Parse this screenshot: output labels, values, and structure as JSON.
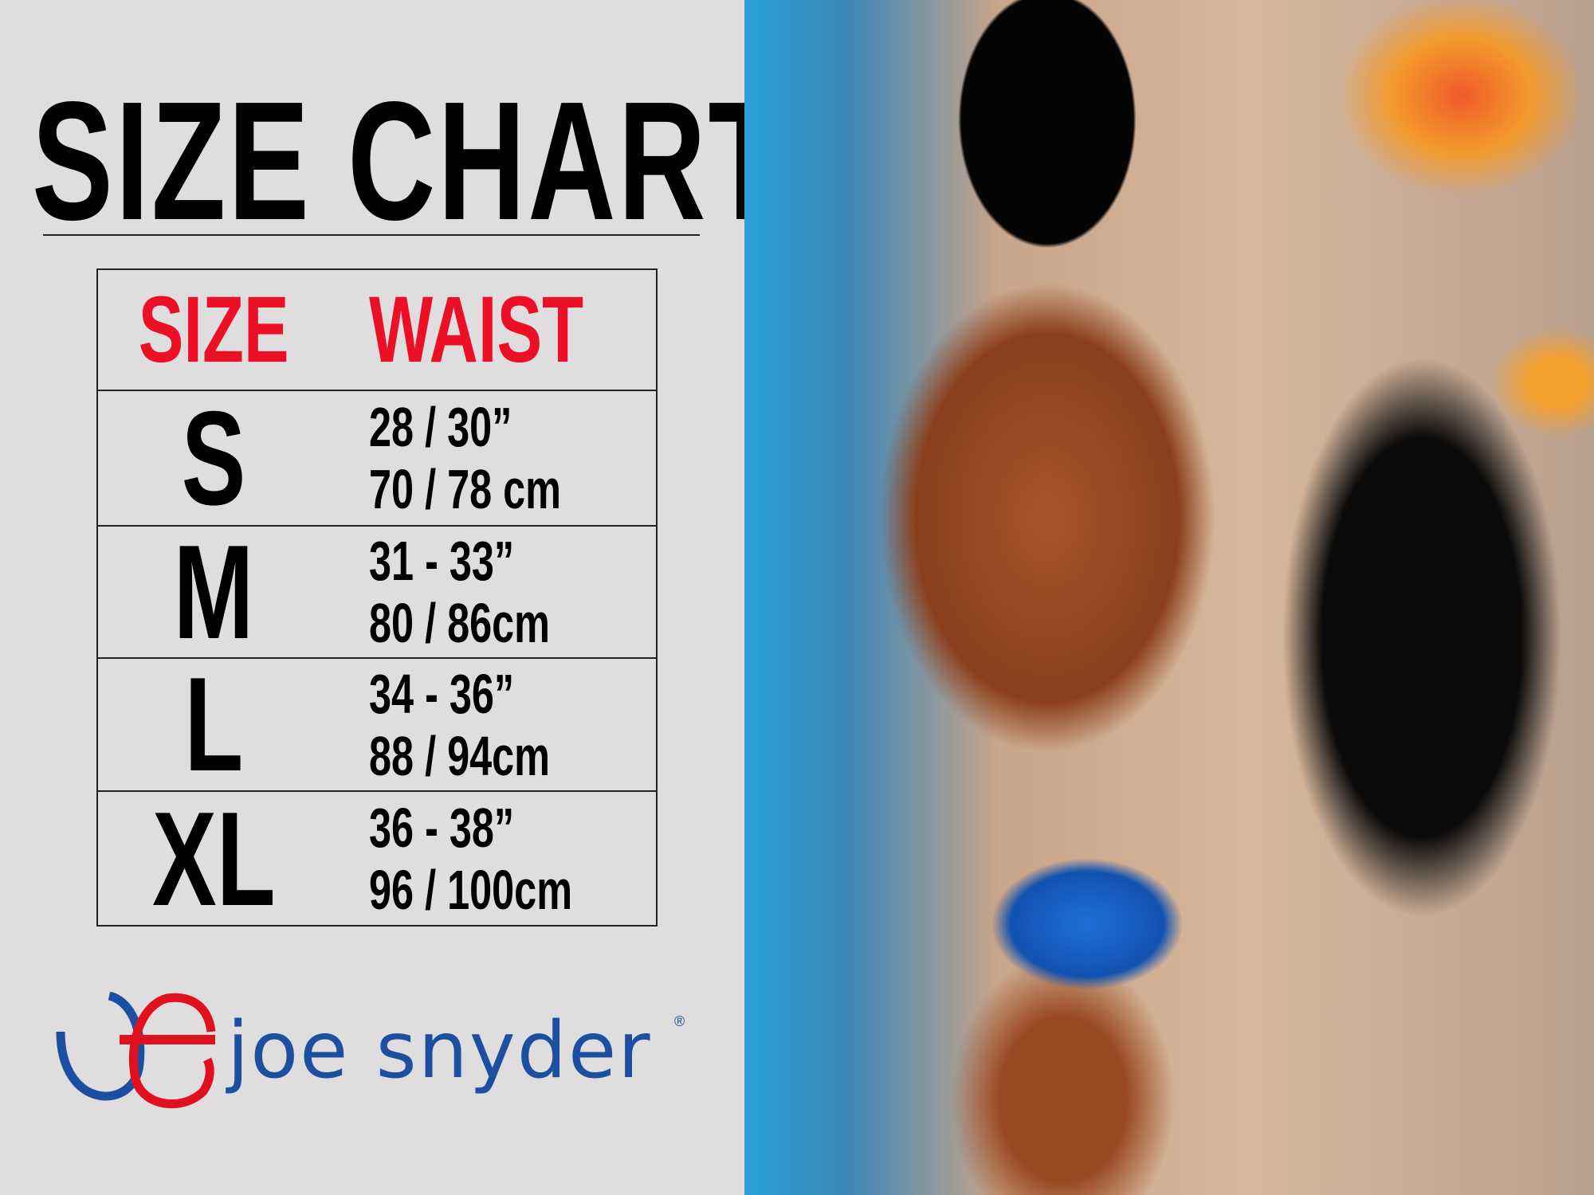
{
  "title": "SIZE CHART",
  "table": {
    "headers": {
      "size": "SIZE",
      "waist": "WAIST"
    },
    "rows": [
      {
        "size": "S",
        "inches": "28 / 30”",
        "cm": "70 / 78 cm"
      },
      {
        "size": "M",
        "inches": "31 - 33”",
        "cm": "80 / 86cm"
      },
      {
        "size": "L",
        "inches": "34 - 36”",
        "cm": "88 / 94cm"
      },
      {
        "size": "XL",
        "inches": "36 - 38”",
        "cm": "96 / 100cm"
      }
    ]
  },
  "brand": {
    "name": "joe snyder",
    "registered": "®"
  },
  "colors": {
    "header": "#ec0f26",
    "brand_blue": "#1d4fa0",
    "brand_red": "#e0101e",
    "background": "#dfdddd"
  }
}
